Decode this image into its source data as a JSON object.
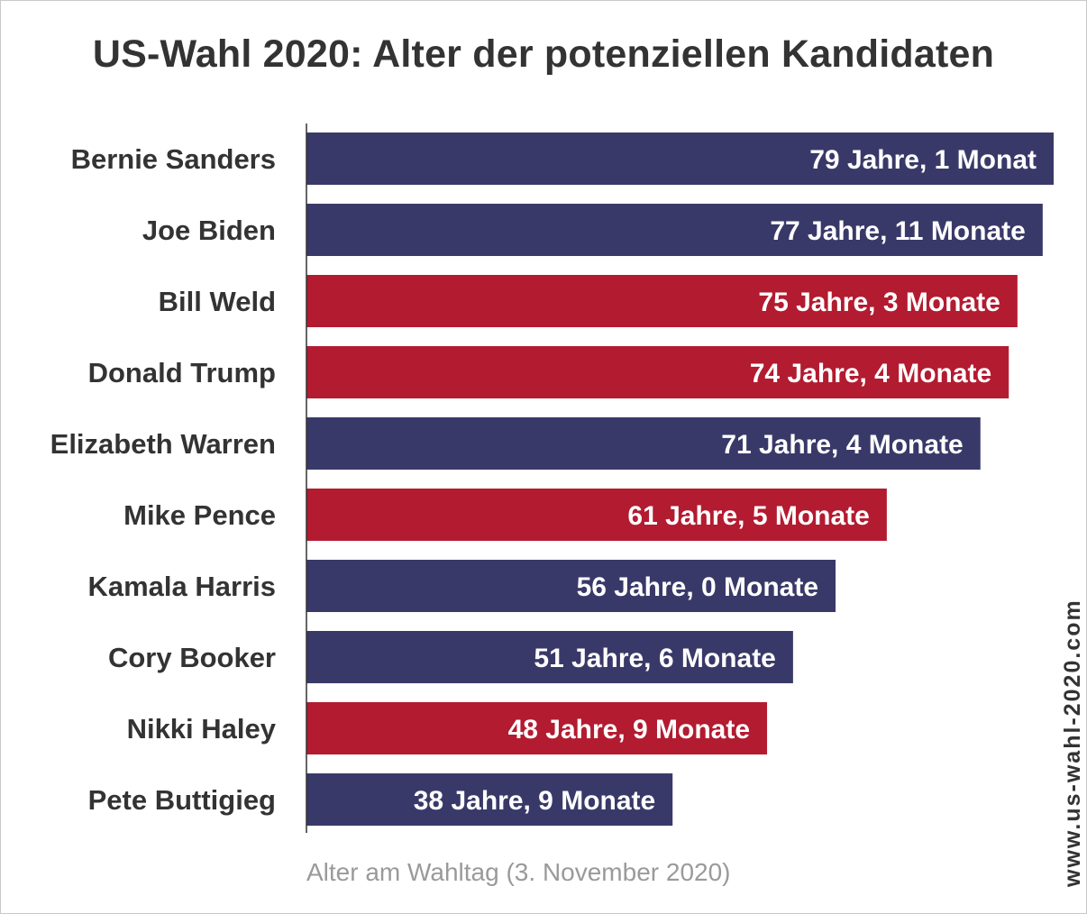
{
  "title": "US-Wahl 2020: Alter der potenziellen Kandidaten",
  "note": "Alter am Wahltag (3. November 2020)",
  "watermark": "www.us-wahl-2020.com",
  "colors": {
    "democrat": "#393969",
    "republican": "#b31b30",
    "text": "#333333"
  },
  "chart_data": {
    "type": "bar",
    "orientation": "horizontal",
    "title": "US-Wahl 2020: Alter der potenziellen Kandidaten",
    "xlabel": "Alter am Wahltag (3. November 2020)",
    "ylabel": "",
    "unit": "Jahre",
    "xlim": [
      0,
      79.08
    ],
    "grid": false,
    "legend": "none",
    "categories": [
      "Bernie Sanders",
      "Joe Biden",
      "Bill Weld",
      "Donald Trump",
      "Elizabeth Warren",
      "Mike Pence",
      "Kamala Harris",
      "Cory Booker",
      "Nikki Haley",
      "Pete Buttigieg"
    ],
    "values": [
      79.08,
      77.92,
      75.25,
      74.33,
      71.33,
      61.42,
      56.0,
      51.5,
      48.75,
      38.75
    ],
    "labels": [
      "79 Jahre, 1 Monat",
      "77 Jahre, 11 Monate",
      "75 Jahre, 3 Monate",
      "74 Jahre, 4 Monate",
      "71 Jahre, 4 Monate",
      "61 Jahre, 5 Monate",
      "56 Jahre, 0 Monate",
      "51 Jahre, 6 Monate",
      "48 Jahre, 9 Monate",
      "38 Jahre, 9 Monate"
    ],
    "party": [
      "democrat",
      "democrat",
      "republican",
      "republican",
      "democrat",
      "republican",
      "democrat",
      "democrat",
      "republican",
      "democrat"
    ]
  }
}
